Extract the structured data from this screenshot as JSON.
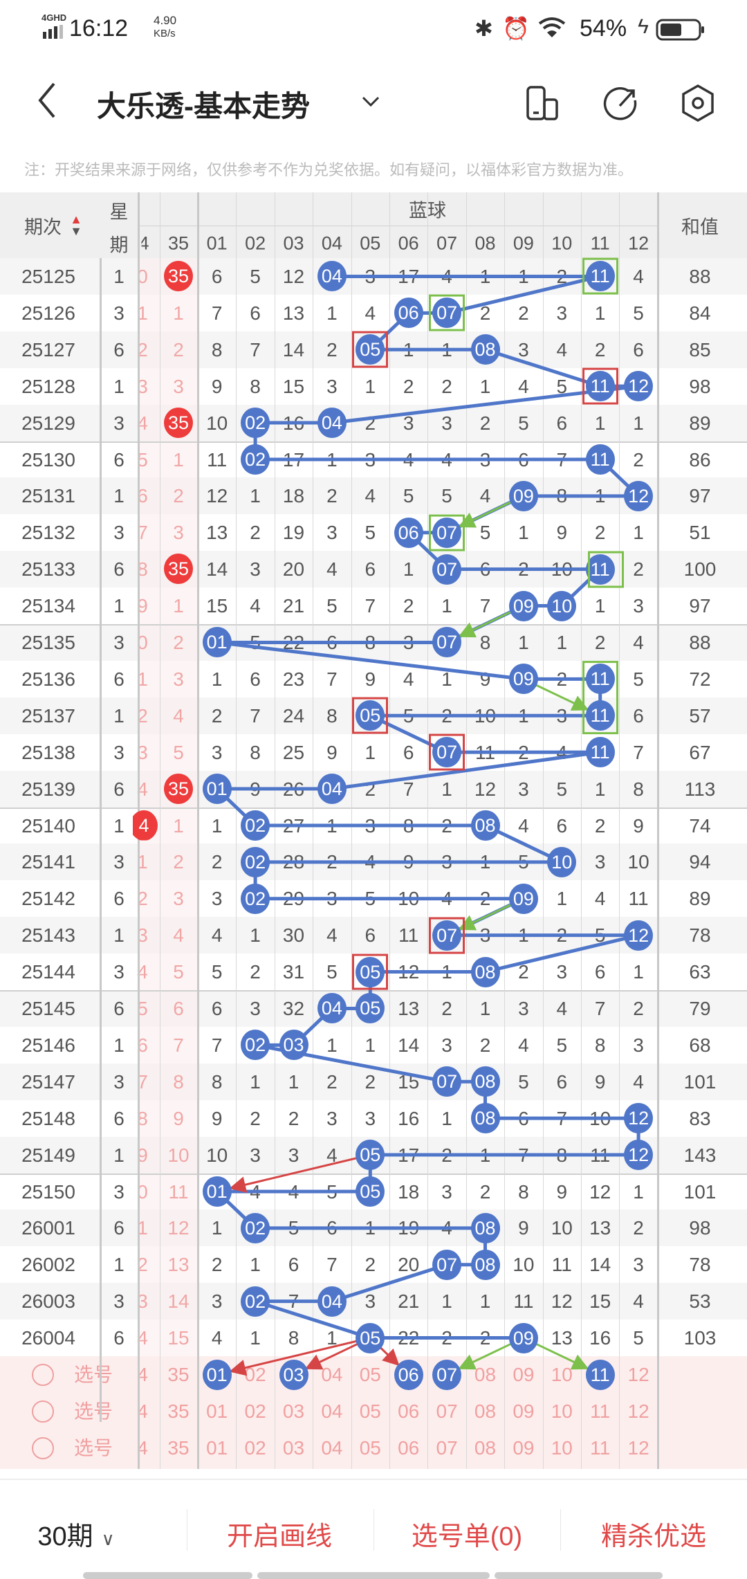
{
  "status_bar": {
    "network": "4GHD",
    "time": "16:12",
    "speed_value": "4.90",
    "speed_unit": "KB/s",
    "battery": "54%"
  },
  "header": {
    "title": "大乐透-基本走势",
    "icons": [
      "back-icon",
      "chevron-down-icon",
      "phone-layout-icon",
      "share-icon",
      "settings-icon"
    ]
  },
  "note": "注：开奖结果来源于网络，仅供参考不作为兑奖依据。如有疑问，以福体彩官方数据为准。",
  "table": {
    "col_period": "期次",
    "col_week_1": "星",
    "col_week_2": "期",
    "group_blue": "蓝球",
    "col_sum": "和值",
    "front_cols": [
      "4",
      "35"
    ],
    "blue_cols": [
      "01",
      "02",
      "03",
      "04",
      "05",
      "06",
      "07",
      "08",
      "09",
      "10",
      "11",
      "12"
    ],
    "colors": {
      "ball": "#4f76c9",
      "red_ball": "#ee3b3b",
      "red_text": "#e23b3b",
      "line": "#4f76c9",
      "green": "#7cc04b",
      "red_box": "#d64545"
    },
    "rows": [
      {
        "p": "25125",
        "w": "1",
        "c34": "0",
        "c35": "35",
        "h35": true,
        "b": [
          "6",
          "5",
          "12",
          "04",
          "3",
          "17",
          "4",
          "1",
          "1",
          "2",
          "11",
          "4"
        ],
        "hits": [
          4,
          11
        ],
        "sum": "88"
      },
      {
        "p": "25126",
        "w": "3",
        "c34": "1",
        "c35": "1",
        "b": [
          "7",
          "6",
          "13",
          "1",
          "4",
          "06",
          "07",
          "2",
          "2",
          "3",
          "1",
          "5"
        ],
        "hits": [
          6,
          7
        ],
        "sum": "84"
      },
      {
        "p": "25127",
        "w": "6",
        "c34": "2",
        "c35": "2",
        "b": [
          "8",
          "7",
          "14",
          "2",
          "05",
          "1",
          "1",
          "08",
          "3",
          "4",
          "2",
          "6"
        ],
        "hits": [
          5,
          8
        ],
        "sum": "85"
      },
      {
        "p": "25128",
        "w": "1",
        "c34": "3",
        "c35": "3",
        "b": [
          "9",
          "8",
          "15",
          "3",
          "1",
          "2",
          "2",
          "1",
          "4",
          "5",
          "11",
          "12"
        ],
        "hits": [
          11,
          12
        ],
        "sum": "98"
      },
      {
        "p": "25129",
        "w": "3",
        "c34": "4",
        "c35": "35",
        "h35": true,
        "b": [
          "10",
          "02",
          "16",
          "04",
          "2",
          "3",
          "3",
          "2",
          "5",
          "6",
          "1",
          "1"
        ],
        "hits": [
          2,
          4
        ],
        "sum": "89"
      },
      {
        "p": "25130",
        "w": "6",
        "c34": "5",
        "c35": "1",
        "b": [
          "11",
          "02",
          "17",
          "1",
          "3",
          "4",
          "4",
          "3",
          "6",
          "7",
          "11",
          "2"
        ],
        "hits": [
          2,
          11
        ],
        "sum": "86"
      },
      {
        "p": "25131",
        "w": "1",
        "c34": "6",
        "c35": "2",
        "b": [
          "12",
          "1",
          "18",
          "2",
          "4",
          "5",
          "5",
          "4",
          "09",
          "8",
          "1",
          "12"
        ],
        "hits": [
          9,
          12
        ],
        "sum": "97"
      },
      {
        "p": "25132",
        "w": "3",
        "c34": "7",
        "c35": "3",
        "b": [
          "13",
          "2",
          "19",
          "3",
          "5",
          "06",
          "07",
          "5",
          "1",
          "9",
          "2",
          "1"
        ],
        "hits": [
          6,
          7
        ],
        "sum": "51"
      },
      {
        "p": "25133",
        "w": "6",
        "c34": "8",
        "c35": "35",
        "h35": true,
        "b": [
          "14",
          "3",
          "20",
          "4",
          "6",
          "1",
          "07",
          "6",
          "2",
          "10",
          "11",
          "2"
        ],
        "hits": [
          7,
          11
        ],
        "sum": "100"
      },
      {
        "p": "25134",
        "w": "1",
        "c34": "9",
        "c35": "1",
        "b": [
          "15",
          "4",
          "21",
          "5",
          "7",
          "2",
          "1",
          "7",
          "09",
          "10",
          "1",
          "3"
        ],
        "hits": [
          9,
          10
        ],
        "sum": "97"
      },
      {
        "p": "25135",
        "w": "3",
        "c34": "0",
        "c35": "2",
        "b": [
          "01",
          "5",
          "22",
          "6",
          "8",
          "3",
          "07",
          "8",
          "1",
          "1",
          "2",
          "4"
        ],
        "hits": [
          1,
          7
        ],
        "sum": "88"
      },
      {
        "p": "25136",
        "w": "6",
        "c34": "1",
        "c35": "3",
        "b": [
          "1",
          "6",
          "23",
          "7",
          "9",
          "4",
          "1",
          "9",
          "09",
          "2",
          "11",
          "5"
        ],
        "hits": [
          9,
          11
        ],
        "sum": "72"
      },
      {
        "p": "25137",
        "w": "1",
        "c34": "2",
        "c35": "4",
        "b": [
          "2",
          "7",
          "24",
          "8",
          "05",
          "5",
          "2",
          "10",
          "1",
          "3",
          "11",
          "6"
        ],
        "hits": [
          5,
          11
        ],
        "sum": "57"
      },
      {
        "p": "25138",
        "w": "3",
        "c34": "3",
        "c35": "5",
        "b": [
          "3",
          "8",
          "25",
          "9",
          "1",
          "6",
          "07",
          "11",
          "2",
          "4",
          "11",
          "7"
        ],
        "hits": [
          7,
          11
        ],
        "sum": "67"
      },
      {
        "p": "25139",
        "w": "6",
        "c34": "4",
        "c35": "35",
        "h35": true,
        "b": [
          "01",
          "9",
          "26",
          "04",
          "2",
          "7",
          "1",
          "12",
          "3",
          "5",
          "1",
          "8"
        ],
        "hits": [
          1,
          4
        ],
        "sum": "113"
      },
      {
        "p": "25140",
        "w": "1",
        "c34": "4",
        "h34": true,
        "c35": "1",
        "b": [
          "1",
          "02",
          "27",
          "1",
          "3",
          "8",
          "2",
          "08",
          "4",
          "6",
          "2",
          "9"
        ],
        "hits": [
          2,
          8
        ],
        "sum": "74"
      },
      {
        "p": "25141",
        "w": "3",
        "c34": "1",
        "c35": "2",
        "b": [
          "2",
          "02",
          "28",
          "2",
          "4",
          "9",
          "3",
          "1",
          "5",
          "10",
          "3",
          "10"
        ],
        "hits": [
          2,
          10
        ],
        "sum": "94"
      },
      {
        "p": "25142",
        "w": "6",
        "c34": "2",
        "c35": "3",
        "b": [
          "3",
          "02",
          "29",
          "3",
          "5",
          "10",
          "4",
          "2",
          "09",
          "1",
          "4",
          "11"
        ],
        "hits": [
          2,
          9
        ],
        "sum": "89"
      },
      {
        "p": "25143",
        "w": "1",
        "c34": "3",
        "c35": "4",
        "b": [
          "4",
          "1",
          "30",
          "4",
          "6",
          "11",
          "07",
          "3",
          "1",
          "2",
          "5",
          "12"
        ],
        "hits": [
          7,
          12
        ],
        "sum": "78"
      },
      {
        "p": "25144",
        "w": "3",
        "c34": "4",
        "c35": "5",
        "b": [
          "5",
          "2",
          "31",
          "5",
          "05",
          "12",
          "1",
          "08",
          "2",
          "3",
          "6",
          "1"
        ],
        "hits": [
          5,
          8
        ],
        "sum": "63"
      },
      {
        "p": "25145",
        "w": "6",
        "c34": "5",
        "c35": "6",
        "b": [
          "6",
          "3",
          "32",
          "04",
          "05",
          "13",
          "2",
          "1",
          "3",
          "4",
          "7",
          "2"
        ],
        "hits": [
          4,
          5
        ],
        "sum": "79"
      },
      {
        "p": "25146",
        "w": "1",
        "c34": "6",
        "c35": "7",
        "b": [
          "7",
          "02",
          "03",
          "1",
          "1",
          "14",
          "3",
          "2",
          "4",
          "5",
          "8",
          "3"
        ],
        "hits": [
          2,
          3
        ],
        "sum": "68"
      },
      {
        "p": "25147",
        "w": "3",
        "c34": "7",
        "c35": "8",
        "b": [
          "8",
          "1",
          "1",
          "2",
          "2",
          "15",
          "07",
          "08",
          "5",
          "6",
          "9",
          "4"
        ],
        "hits": [
          7,
          8
        ],
        "sum": "101"
      },
      {
        "p": "25148",
        "w": "6",
        "c34": "8",
        "c35": "9",
        "b": [
          "9",
          "2",
          "2",
          "3",
          "3",
          "16",
          "1",
          "08",
          "6",
          "7",
          "10",
          "12"
        ],
        "hits": [
          8,
          12
        ],
        "sum": "83"
      },
      {
        "p": "25149",
        "w": "1",
        "c34": "9",
        "c35": "10",
        "b": [
          "10",
          "3",
          "3",
          "4",
          "05",
          "17",
          "2",
          "1",
          "7",
          "8",
          "11",
          "12"
        ],
        "hits": [
          5,
          12
        ],
        "sum": "143"
      },
      {
        "p": "25150",
        "w": "3",
        "c34": "0",
        "c35": "11",
        "b": [
          "01",
          "4",
          "4",
          "5",
          "05",
          "18",
          "3",
          "2",
          "8",
          "9",
          "12",
          "1"
        ],
        "hits": [
          1,
          5
        ],
        "sum": "101"
      },
      {
        "p": "26001",
        "w": "6",
        "c34": "1",
        "c35": "12",
        "b": [
          "1",
          "02",
          "5",
          "6",
          "1",
          "19",
          "4",
          "08",
          "9",
          "10",
          "13",
          "2"
        ],
        "hits": [
          2,
          8
        ],
        "sum": "98"
      },
      {
        "p": "26002",
        "w": "1",
        "c34": "2",
        "c35": "13",
        "b": [
          "2",
          "1",
          "6",
          "7",
          "2",
          "20",
          "07",
          "08",
          "10",
          "11",
          "14",
          "3"
        ],
        "hits": [
          7,
          8
        ],
        "sum": "78"
      },
      {
        "p": "26003",
        "w": "3",
        "c34": "3",
        "c35": "14",
        "b": [
          "3",
          "02",
          "7",
          "04",
          "3",
          "21",
          "1",
          "1",
          "11",
          "12",
          "15",
          "4"
        ],
        "hits": [
          2,
          4
        ],
        "sum": "53"
      },
      {
        "p": "26004",
        "w": "6",
        "c34": "4",
        "c35": "15",
        "b": [
          "4",
          "1",
          "8",
          "1",
          "05",
          "22",
          "2",
          "2",
          "09",
          "13",
          "16",
          "5"
        ],
        "hits": [
          5,
          9
        ],
        "sum": "103"
      }
    ],
    "red_boxes": [
      [
        2,
        5
      ],
      [
        3,
        11
      ],
      [
        12,
        5
      ],
      [
        13,
        7
      ],
      [
        18,
        7
      ],
      [
        19,
        5
      ]
    ],
    "green_boxes": [
      [
        0,
        11
      ],
      [
        1,
        7
      ],
      [
        7,
        7
      ],
      [
        8,
        11
      ],
      [
        11,
        11,
        2
      ]
    ],
    "green_arrows": [
      [
        6,
        9,
        7,
        7
      ],
      [
        9,
        9,
        10,
        7
      ],
      [
        11,
        9,
        12,
        11
      ],
      [
        17,
        9,
        18,
        7
      ],
      [
        29,
        9,
        30,
        7
      ],
      [
        29,
        9,
        30,
        11
      ]
    ],
    "red_arrows": [
      [
        24,
        5,
        25,
        1
      ],
      [
        29,
        5,
        30,
        1
      ],
      [
        29,
        5,
        30,
        3
      ],
      [
        29,
        5,
        30,
        6
      ]
    ]
  },
  "selection": {
    "label": "选号",
    "rows": [
      {
        "c34": "4",
        "c35": "35",
        "picked": [
          1,
          3,
          6,
          7,
          11
        ]
      },
      {
        "c34": "4",
        "c35": "35",
        "picked": []
      },
      {
        "c34": "4",
        "c35": "35",
        "picked": []
      }
    ]
  },
  "toolbar": {
    "periods": "30期",
    "draw_line": "开启画线",
    "pick_list": "选号单(0)",
    "premium": "精杀优选"
  }
}
